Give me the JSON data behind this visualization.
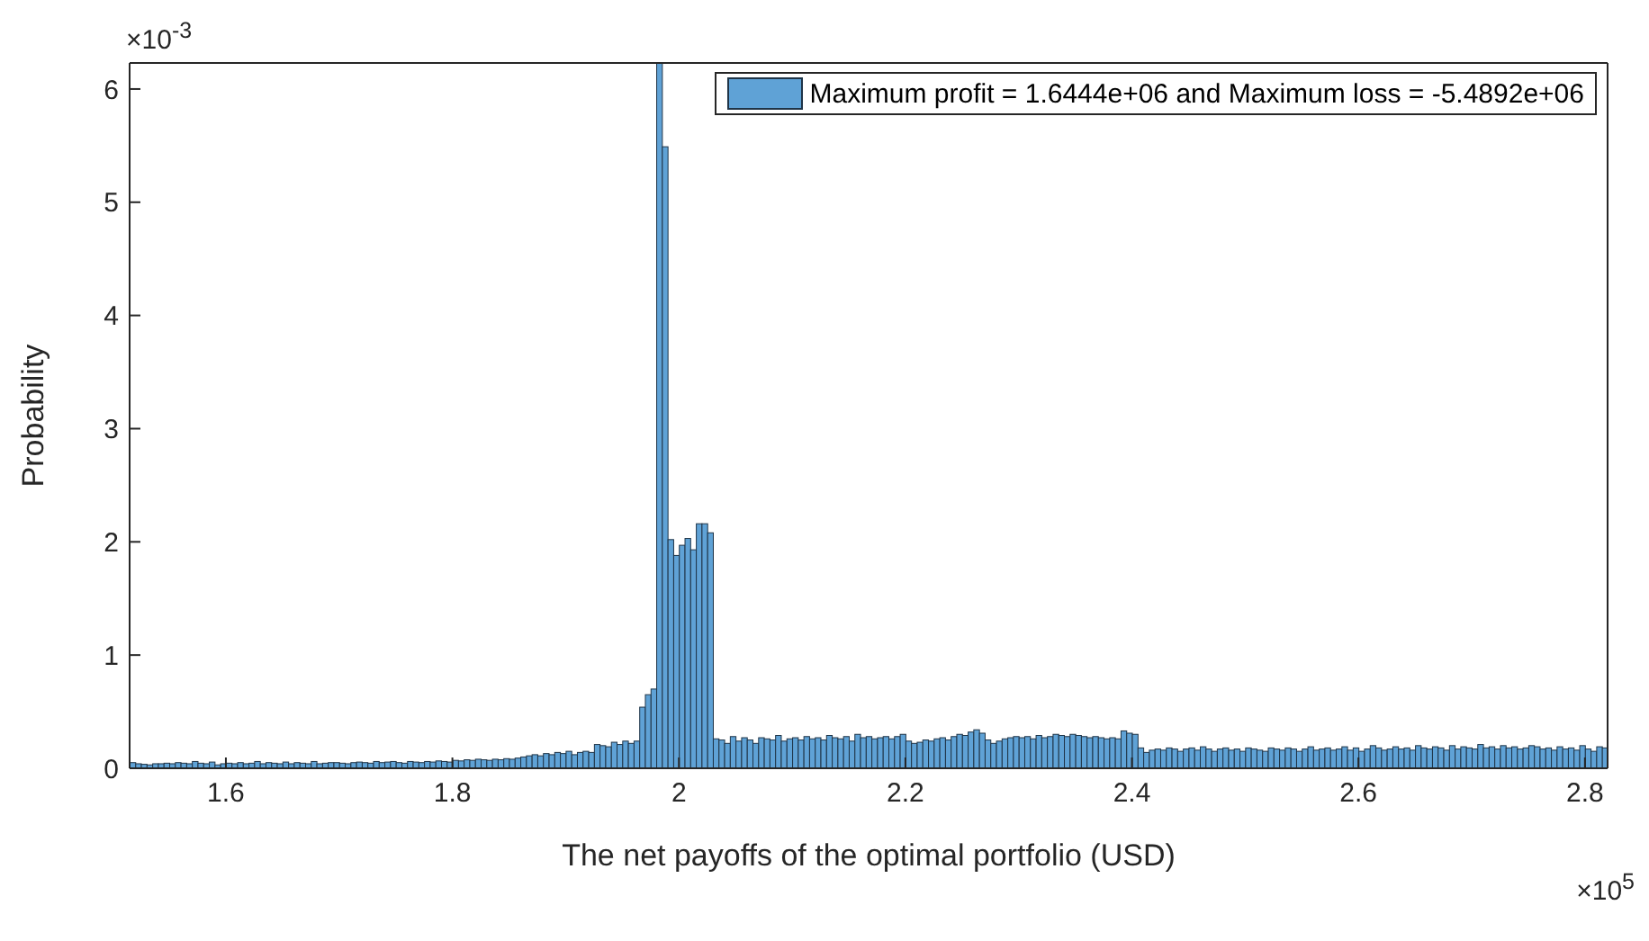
{
  "chart_data": {
    "type": "histogram",
    "xlabel": "The net payoffs of the optimal portfolio (USD)",
    "ylabel": "Probability",
    "legend": "top right",
    "annotations": [
      "×10$^{-3}$",
      "×10$^{5}$"
    ],
    "xlim": [
      1.515,
      2.82
    ],
    "ylim": [
      0,
      6.23
    ],
    "xticks": [
      1.6,
      1.8,
      2,
      2.2,
      2.4,
      2.6,
      2.8
    ],
    "yticks": [
      0,
      1,
      2,
      3,
      4,
      5,
      6
    ],
    "bins": [
      1.515,
      1.52,
      1.525,
      1.53,
      1.535,
      1.54,
      1.545,
      1.55,
      1.555,
      1.56,
      1.565,
      1.57,
      1.575,
      1.58,
      1.585,
      1.59,
      1.595,
      1.6,
      1.605,
      1.61,
      1.615,
      1.62,
      1.625,
      1.63,
      1.635,
      1.64,
      1.645,
      1.65,
      1.655,
      1.66,
      1.665,
      1.67,
      1.675,
      1.68,
      1.685,
      1.69,
      1.695,
      1.7,
      1.705,
      1.71,
      1.715,
      1.72,
      1.725,
      1.73,
      1.735,
      1.74,
      1.745,
      1.75,
      1.755,
      1.76,
      1.765,
      1.77,
      1.775,
      1.78,
      1.785,
      1.79,
      1.795,
      1.8,
      1.805,
      1.81,
      1.815,
      1.82,
      1.825,
      1.83,
      1.835,
      1.84,
      1.845,
      1.85,
      1.855,
      1.86,
      1.865,
      1.87,
      1.875,
      1.88,
      1.885,
      1.89,
      1.895,
      1.9,
      1.905,
      1.91,
      1.915,
      1.92,
      1.925,
      1.93,
      1.935,
      1.94,
      1.945,
      1.95,
      1.955,
      1.96,
      1.965,
      1.97,
      1.975,
      1.98,
      1.985,
      1.99,
      1.995,
      2.0,
      2.005,
      2.01,
      2.015,
      2.02,
      2.025,
      2.03,
      2.035,
      2.04,
      2.045,
      2.05,
      2.055,
      2.06,
      2.065,
      2.07,
      2.075,
      2.08,
      2.085,
      2.09,
      2.095,
      2.1,
      2.105,
      2.11,
      2.115,
      2.12,
      2.125,
      2.13,
      2.135,
      2.14,
      2.145,
      2.15,
      2.155,
      2.16,
      2.165,
      2.17,
      2.175,
      2.18,
      2.185,
      2.19,
      2.195,
      2.2,
      2.205,
      2.21,
      2.215,
      2.22,
      2.225,
      2.23,
      2.235,
      2.24,
      2.245,
      2.25,
      2.255,
      2.26,
      2.265,
      2.27,
      2.275,
      2.28,
      2.285,
      2.29,
      2.295,
      2.3,
      2.305,
      2.31,
      2.315,
      2.32,
      2.325,
      2.33,
      2.335,
      2.34,
      2.345,
      2.35,
      2.355,
      2.36,
      2.365,
      2.37,
      2.375,
      2.38,
      2.385,
      2.39,
      2.395,
      2.4,
      2.405,
      2.41,
      2.415,
      2.42,
      2.425,
      2.43,
      2.435,
      2.44,
      2.445,
      2.45,
      2.455,
      2.46,
      2.465,
      2.47,
      2.475,
      2.48,
      2.485,
      2.49,
      2.495,
      2.5,
      2.505,
      2.51,
      2.515,
      2.52,
      2.525,
      2.53,
      2.535,
      2.54,
      2.545,
      2.55,
      2.555,
      2.56,
      2.565,
      2.57,
      2.575,
      2.58,
      2.585,
      2.59,
      2.595,
      2.6,
      2.605,
      2.61,
      2.615,
      2.62,
      2.625,
      2.63,
      2.635,
      2.64,
      2.645,
      2.65,
      2.655,
      2.66,
      2.665,
      2.67,
      2.675,
      2.68,
      2.685,
      2.69,
      2.695,
      2.7,
      2.705,
      2.71,
      2.715,
      2.72,
      2.725,
      2.73,
      2.735,
      2.74,
      2.745,
      2.75,
      2.755,
      2.76,
      2.765,
      2.77,
      2.775,
      2.78,
      2.785,
      2.79,
      2.795,
      2.8,
      2.805,
      2.81,
      2.815,
      2.82
    ],
    "series": [
      {
        "name": "Maximum profit = 1.6444e+06 and Maximum loss = -5.4892e+06",
        "color": "#5fa2d6",
        "values": [
          0.05,
          0.04,
          0.035,
          0.03,
          0.04,
          0.04,
          0.045,
          0.04,
          0.05,
          0.045,
          0.04,
          0.06,
          0.045,
          0.04,
          0.055,
          0.03,
          0.04,
          0.045,
          0.04,
          0.05,
          0.04,
          0.045,
          0.06,
          0.04,
          0.05,
          0.045,
          0.04,
          0.055,
          0.04,
          0.05,
          0.045,
          0.04,
          0.06,
          0.04,
          0.045,
          0.05,
          0.05,
          0.045,
          0.04,
          0.05,
          0.055,
          0.05,
          0.045,
          0.06,
          0.05,
          0.055,
          0.06,
          0.05,
          0.045,
          0.06,
          0.055,
          0.05,
          0.06,
          0.055,
          0.065,
          0.06,
          0.055,
          0.07,
          0.065,
          0.075,
          0.07,
          0.08,
          0.075,
          0.07,
          0.08,
          0.075,
          0.085,
          0.08,
          0.09,
          0.1,
          0.11,
          0.12,
          0.11,
          0.13,
          0.12,
          0.14,
          0.13,
          0.15,
          0.12,
          0.14,
          0.15,
          0.14,
          0.21,
          0.2,
          0.19,
          0.23,
          0.21,
          0.24,
          0.22,
          0.24,
          0.54,
          0.65,
          0.7,
          6.23,
          5.49,
          2.02,
          1.88,
          1.97,
          2.03,
          1.93,
          2.16,
          2.16,
          2.08,
          0.26,
          0.25,
          0.22,
          0.28,
          0.24,
          0.27,
          0.25,
          0.22,
          0.27,
          0.26,
          0.25,
          0.29,
          0.24,
          0.26,
          0.27,
          0.25,
          0.28,
          0.26,
          0.27,
          0.25,
          0.29,
          0.27,
          0.26,
          0.28,
          0.24,
          0.3,
          0.27,
          0.28,
          0.26,
          0.27,
          0.28,
          0.26,
          0.28,
          0.3,
          0.24,
          0.22,
          0.23,
          0.25,
          0.24,
          0.26,
          0.27,
          0.25,
          0.28,
          0.3,
          0.29,
          0.32,
          0.34,
          0.31,
          0.25,
          0.22,
          0.24,
          0.26,
          0.27,
          0.28,
          0.27,
          0.28,
          0.26,
          0.29,
          0.27,
          0.28,
          0.3,
          0.29,
          0.28,
          0.3,
          0.29,
          0.28,
          0.27,
          0.28,
          0.27,
          0.26,
          0.27,
          0.26,
          0.33,
          0.31,
          0.3,
          0.18,
          0.14,
          0.16,
          0.17,
          0.16,
          0.18,
          0.17,
          0.15,
          0.17,
          0.18,
          0.16,
          0.19,
          0.17,
          0.15,
          0.17,
          0.18,
          0.16,
          0.17,
          0.15,
          0.18,
          0.17,
          0.16,
          0.15,
          0.18,
          0.17,
          0.16,
          0.18,
          0.17,
          0.15,
          0.17,
          0.19,
          0.16,
          0.17,
          0.18,
          0.16,
          0.17,
          0.19,
          0.16,
          0.18,
          0.15,
          0.17,
          0.2,
          0.18,
          0.16,
          0.17,
          0.19,
          0.17,
          0.18,
          0.16,
          0.2,
          0.18,
          0.17,
          0.19,
          0.18,
          0.16,
          0.2,
          0.17,
          0.19,
          0.18,
          0.17,
          0.21,
          0.18,
          0.19,
          0.17,
          0.2,
          0.18,
          0.19,
          0.17,
          0.18,
          0.2,
          0.19,
          0.17,
          0.18,
          0.16,
          0.19,
          0.17,
          0.18,
          0.16,
          0.2,
          0.17,
          0.15,
          0.19,
          0.18
        ]
      }
    ]
  }
}
